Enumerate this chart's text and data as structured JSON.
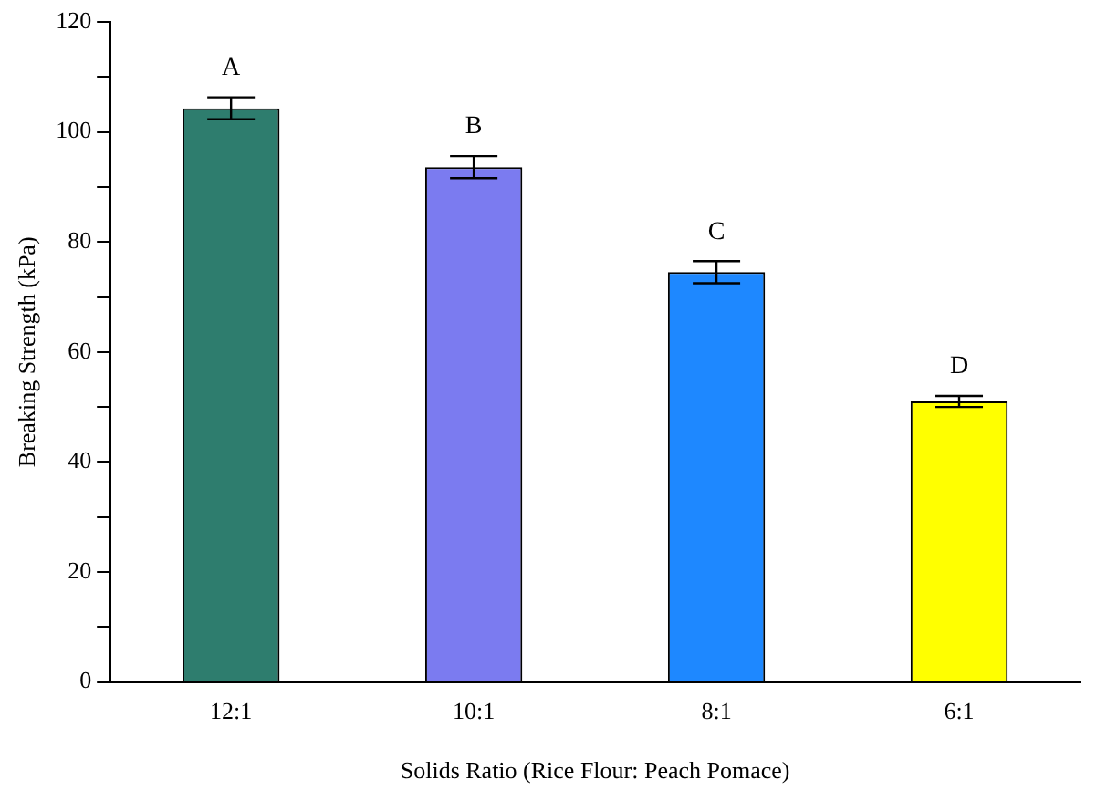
{
  "chart_data": {
    "type": "bar",
    "xlabel": "Solids Ratio (Rice Flour: Peach Pomace)",
    "ylabel": "Breaking Strength (kPa)",
    "categories": [
      "12:1",
      "10:1",
      "8:1",
      "6:1"
    ],
    "values": [
      104.3,
      93.6,
      74.5,
      51
    ],
    "errors": [
      2,
      2,
      2,
      1
    ],
    "colors": [
      "#2e7d6e",
      "#7b7bf0",
      "#1e88ff",
      "#ffff00"
    ],
    "ylim": [
      0,
      120
    ],
    "yticks": [
      0,
      {
        "value": 10,
        "label": null
      },
      20,
      {
        "value": 30,
        "label": null
      },
      40,
      {
        "value": 50,
        "label": null
      },
      60,
      {
        "value": 70,
        "label": null
      },
      80,
      {
        "value": 90,
        "label": null
      },
      100,
      {
        "value": 110,
        "label": null
      },
      120
    ],
    "value_labels": [
      "A",
      "B",
      "C",
      "D"
    ],
    "grid": false,
    "legend": false
  }
}
